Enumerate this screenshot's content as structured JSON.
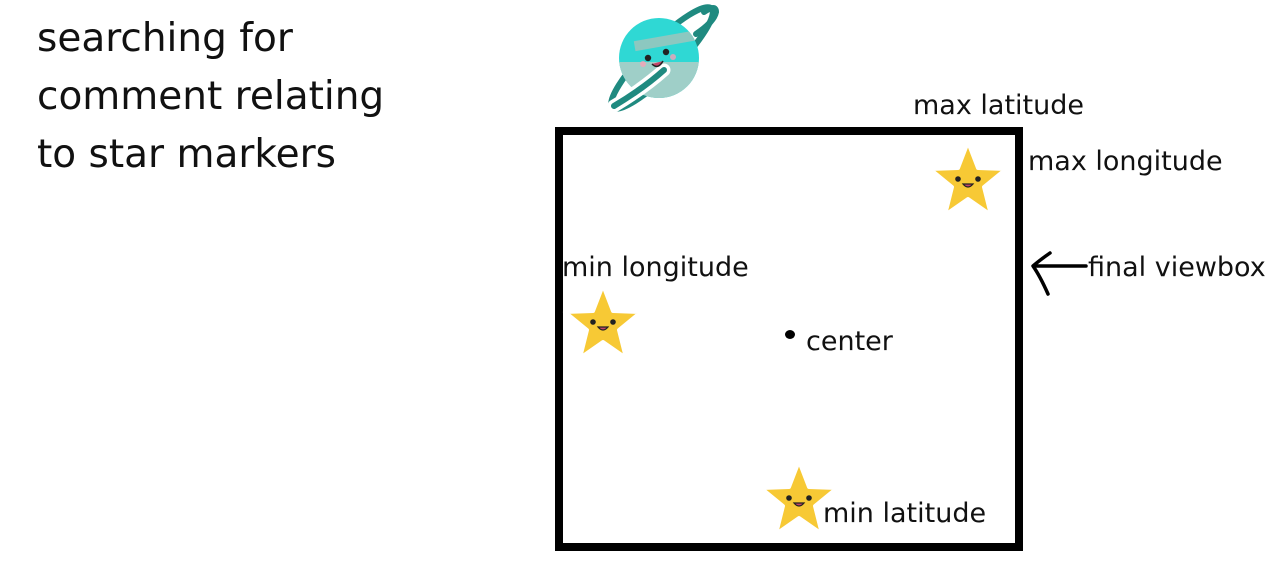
{
  "heading": {
    "lines": [
      "searching for",
      "comment relating",
      "to star markers"
    ]
  },
  "labels": {
    "max_latitude": "max latitude",
    "max_longitude": "max longitude",
    "min_longitude": "min longitude",
    "min_latitude": "min latitude",
    "center": "center",
    "final_viewbox": "final viewbox"
  },
  "colors": {
    "star_fill": "#f7c935",
    "star_outline": "#ffffff",
    "planet_body": "#2fd8d4",
    "planet_shade": "#9fcfc8",
    "planet_ring": "#1f8a80",
    "box_border": "#000000"
  },
  "icons": {
    "planet": "planet-icon",
    "star": "star-icon",
    "arrow": "arrow-left-icon"
  }
}
